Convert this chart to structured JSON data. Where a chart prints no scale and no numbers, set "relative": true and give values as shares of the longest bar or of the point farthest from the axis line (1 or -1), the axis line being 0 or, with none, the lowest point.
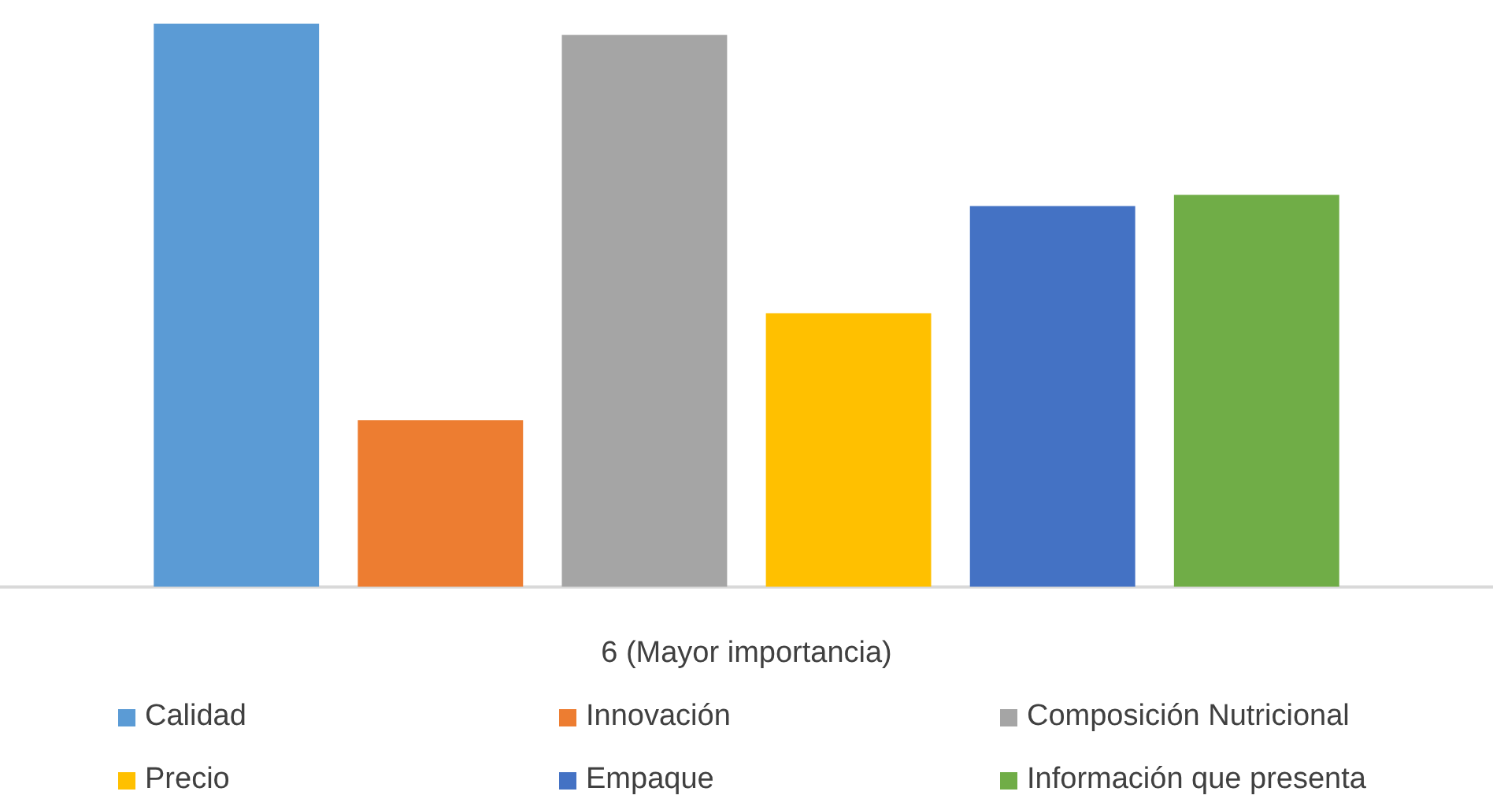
{
  "chart_data": {
    "type": "bar",
    "relative": true,
    "xlabel": "6 (Mayor importancia)",
    "categories": [
      null
    ],
    "series": [
      {
        "name": "Calidad",
        "color": "#5b9bd5",
        "values": [
          1
        ]
      },
      {
        "name": "Innovación",
        "color": "#ed7d31",
        "values": [
          0.296
        ]
      },
      {
        "name": "Composición Nutricional",
        "color": "#a5a5a5",
        "values": [
          0.98
        ]
      },
      {
        "name": "Precio",
        "color": "#ffc000",
        "values": [
          0.486
        ]
      },
      {
        "name": "Empaque",
        "color": "#4472c4",
        "values": [
          0.676
        ]
      },
      {
        "name": "Información que presenta",
        "color": "#70ad47",
        "values": [
          0.696
        ]
      }
    ],
    "legend": "bottom",
    "grid": false
  }
}
